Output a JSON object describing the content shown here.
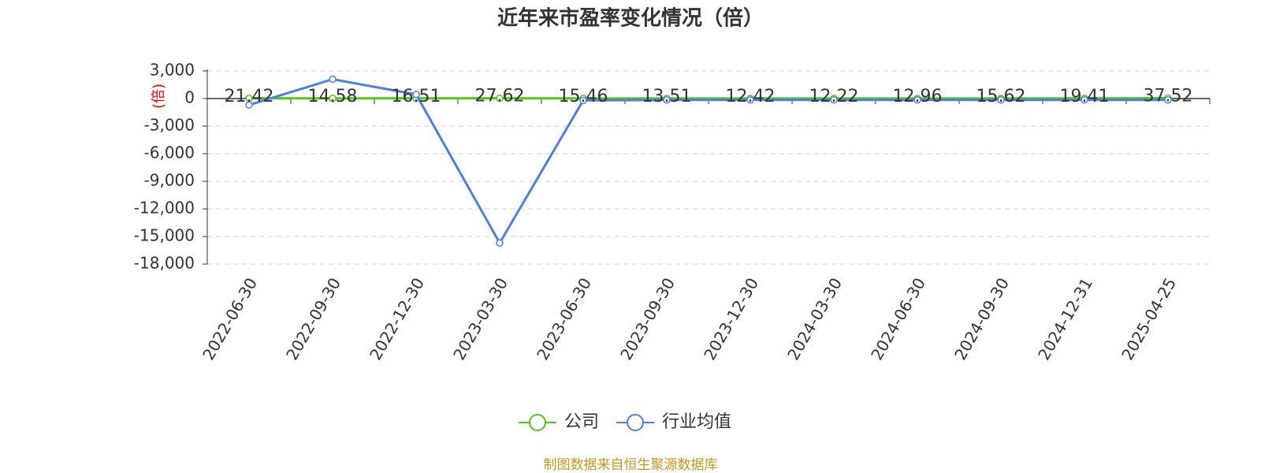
{
  "chart_data": {
    "type": "line",
    "title": "近年来市盈率变化情况（倍）",
    "y_label": "(倍)",
    "source": "制图数据来自恒生聚源数据库",
    "categories": [
      "2022-06-30",
      "2022-09-30",
      "2022-12-30",
      "2023-03-30",
      "2023-06-30",
      "2023-09-30",
      "2023-12-30",
      "2024-03-30",
      "2024-06-30",
      "2024-09-30",
      "2024-12-31",
      "2025-04-25"
    ],
    "series": [
      {
        "name": "公司",
        "color": "#52c41a",
        "values": [
          21.42,
          14.58,
          16.51,
          27.62,
          15.46,
          13.51,
          12.42,
          12.22,
          12.96,
          15.62,
          19.41,
          37.52
        ]
      },
      {
        "name": "行业均值",
        "color": "#4e7fdc",
        "values": [
          -700,
          2100,
          450,
          -15700,
          -200,
          -150,
          -150,
          -150,
          -150,
          -150,
          -150,
          -150
        ]
      }
    ],
    "ylim": [
      -18000,
      3000
    ],
    "yticks": [
      {
        "value": 3000,
        "label": "3,000"
      },
      0,
      {
        "value": -3000,
        "label": "-3,000"
      },
      {
        "value": -6000,
        "label": "-6,000"
      },
      {
        "value": -9000,
        "label": "-9,000"
      },
      {
        "value": -12000,
        "label": "-12,000"
      },
      {
        "value": -15000,
        "label": "-15,000"
      },
      {
        "value": -18000,
        "label": "-18,000"
      }
    ],
    "grid": true
  }
}
